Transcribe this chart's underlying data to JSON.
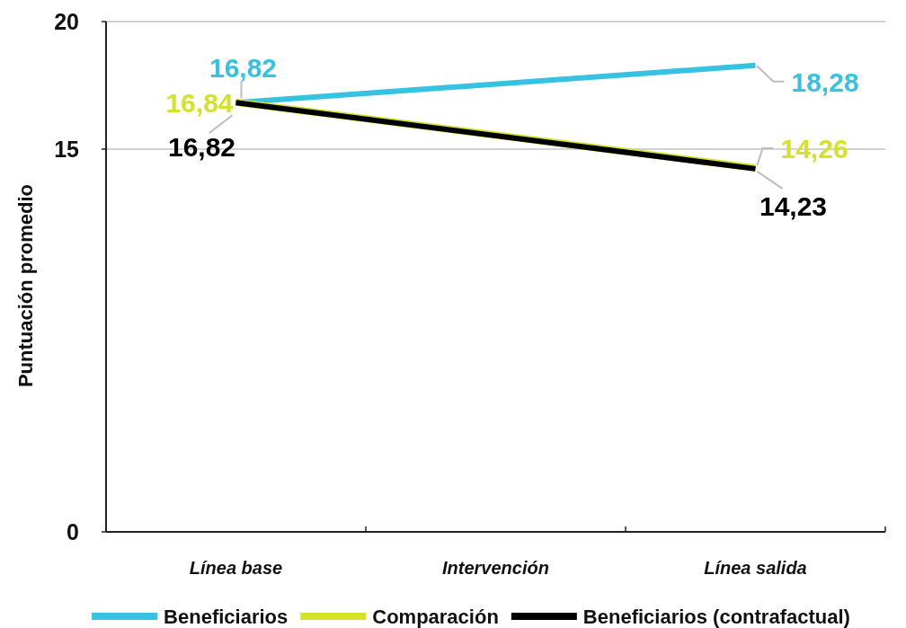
{
  "chart_data": {
    "type": "line",
    "ylabel": "Puntuación promedio",
    "categories": [
      "Línea base",
      "Intervención",
      "Línea salida"
    ],
    "series": [
      {
        "name": "Beneficiarios",
        "color": "#36c2e1",
        "values": [
          16.82,
          null,
          18.28
        ],
        "value_labels": [
          "16,82",
          null,
          "18,28"
        ]
      },
      {
        "name": "Comparación",
        "color": "#d5e22b",
        "values": [
          16.84,
          null,
          14.26
        ],
        "value_labels": [
          "16,84",
          null,
          "14,26"
        ]
      },
      {
        "name": "Beneficiarios (contrafactual)",
        "color": "#000000",
        "values": [
          16.82,
          null,
          14.23
        ],
        "value_labels": [
          "16,82",
          null,
          "14,23"
        ]
      }
    ],
    "ylim": [
      0,
      20
    ],
    "yticks": [
      0,
      15,
      20
    ],
    "grid": "y",
    "legend": "bottom"
  }
}
